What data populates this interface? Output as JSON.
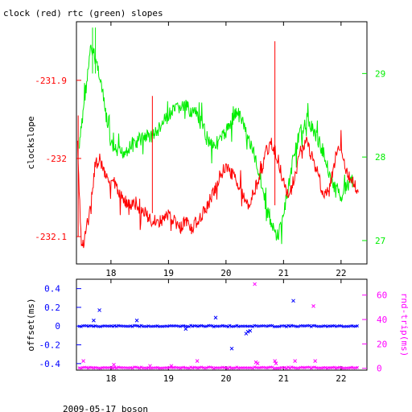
{
  "title": "clock (red) rtc (green) slopes",
  "footer": "2009-05-17 boson",
  "colors": {
    "clock": "#ff0000",
    "rtc": "#00ee00",
    "offset": "#0000ff",
    "rndtrip": "#ff00ff",
    "axes": "#000000"
  },
  "chart_data": [
    {
      "type": "line",
      "title": "clock (red) rtc (green) slopes",
      "ylabel": "clockslope",
      "xlim": [
        17.4,
        22.45
      ],
      "x_ticks": [
        "18",
        "19",
        "20",
        "21",
        "22"
      ],
      "y_left": {
        "lim": [
          -232.135,
          -231.825
        ],
        "ticks": [
          "-231.9",
          "-232",
          "-232.1"
        ],
        "tick_values": [
          -231.9,
          -232.0,
          -232.1
        ]
      },
      "y_right": {
        "lim": [
          26.72,
          29.62
        ],
        "ticks": [
          "29",
          "28",
          "27"
        ],
        "tick_values": [
          29,
          28,
          27
        ]
      },
      "series": [
        {
          "name": "clock",
          "axis": "left",
          "x": [
            17.42,
            17.48,
            17.52,
            17.58,
            17.65,
            17.72,
            17.8,
            17.9,
            18.0,
            18.1,
            18.2,
            18.3,
            18.4,
            18.5,
            18.6,
            18.7,
            18.8,
            18.9,
            19.0,
            19.1,
            19.2,
            19.3,
            19.4,
            19.5,
            19.6,
            19.7,
            19.8,
            19.9,
            20.0,
            20.1,
            20.2,
            20.3,
            20.4,
            20.5,
            20.6,
            20.7,
            20.8,
            20.9,
            21.0,
            21.1,
            21.2,
            21.3,
            21.4,
            21.5,
            21.6,
            21.7,
            21.8,
            21.9,
            22.0,
            22.1,
            22.2,
            22.3
          ],
          "y": [
            -231.98,
            -232.1,
            -232.11,
            -232.09,
            -232.06,
            -232.01,
            -232.0,
            -232.02,
            -232.03,
            -232.04,
            -232.05,
            -232.06,
            -232.06,
            -232.07,
            -232.07,
            -232.08,
            -232.08,
            -232.08,
            -232.07,
            -232.08,
            -232.09,
            -232.08,
            -232.09,
            -232.08,
            -232.07,
            -232.06,
            -232.04,
            -232.02,
            -232.01,
            -232.02,
            -232.03,
            -232.05,
            -232.06,
            -232.04,
            -232.02,
            -231.99,
            -231.98,
            -232.0,
            -232.03,
            -232.05,
            -232.02,
            -231.99,
            -231.98,
            -232.0,
            -232.02,
            -232.05,
            -232.04,
            -232.0,
            -231.98,
            -232.02,
            -232.03,
            -232.04
          ]
        },
        {
          "name": "rtc",
          "axis": "right",
          "x": [
            17.45,
            17.52,
            17.58,
            17.65,
            17.72,
            17.8,
            17.9,
            18.0,
            18.1,
            18.2,
            18.3,
            18.4,
            18.5,
            18.6,
            18.7,
            18.8,
            18.9,
            19.0,
            19.1,
            19.2,
            19.3,
            19.4,
            19.5,
            19.6,
            19.7,
            19.8,
            19.9,
            20.0,
            20.1,
            20.2,
            20.3,
            20.4,
            20.5,
            20.6,
            20.7,
            20.8,
            20.9,
            21.0,
            21.1,
            21.2,
            21.3,
            21.4,
            21.5,
            21.6,
            21.7,
            21.8,
            21.9,
            22.0,
            22.1,
            22.2
          ],
          "y": [
            28.1,
            28.6,
            28.9,
            29.3,
            29.2,
            29.0,
            28.55,
            28.15,
            28.05,
            28.05,
            28.1,
            28.15,
            28.2,
            28.25,
            28.25,
            28.3,
            28.4,
            28.5,
            28.55,
            28.6,
            28.6,
            28.55,
            28.5,
            28.35,
            28.2,
            28.15,
            28.2,
            28.3,
            28.45,
            28.55,
            28.4,
            28.2,
            28.0,
            27.75,
            27.4,
            27.15,
            27.05,
            27.3,
            27.7,
            28.1,
            28.3,
            28.45,
            28.35,
            28.2,
            28.05,
            27.8,
            27.6,
            27.55,
            27.65,
            27.8
          ]
        }
      ]
    },
    {
      "type": "scatter",
      "xlim": [
        17.4,
        22.45
      ],
      "x_ticks": [
        "18",
        "19",
        "20",
        "21",
        "22"
      ],
      "y_left": {
        "label": "offset(ms)",
        "lim": [
          -0.47,
          0.5
        ],
        "ticks": [
          "0.4",
          "0.2",
          "0",
          "-0.2",
          "-0.4"
        ],
        "tick_values": [
          0.4,
          0.2,
          0.0,
          -0.2,
          -0.4
        ]
      },
      "y_right": {
        "label": "rnd-trip(ms)",
        "lim": [
          -1.5,
          73
        ],
        "ticks": [
          "60",
          "40",
          "20",
          "0"
        ],
        "tick_values": [
          60,
          40,
          20,
          0
        ]
      },
      "series": [
        {
          "name": "offset",
          "axis": "left",
          "marker": "x",
          "baseline": 0.0,
          "x": [
            17.7,
            17.8,
            18.45,
            19.3,
            19.82,
            20.1,
            20.35,
            20.38,
            20.42,
            21.17
          ],
          "y": [
            0.06,
            0.17,
            0.06,
            -0.03,
            0.09,
            -0.24,
            -0.08,
            -0.06,
            -0.05,
            0.27
          ]
        },
        {
          "name": "rndtrip",
          "axis": "right",
          "marker": "x",
          "baseline": 0.5,
          "x": [
            17.52,
            18.05,
            18.68,
            19.05,
            19.5,
            20.5,
            20.52,
            20.55,
            20.85,
            20.87,
            21.2,
            21.52,
            21.55
          ],
          "y": [
            6,
            3,
            2,
            2,
            6,
            69,
            5,
            4,
            6,
            4,
            6,
            51,
            6
          ]
        }
      ]
    }
  ]
}
